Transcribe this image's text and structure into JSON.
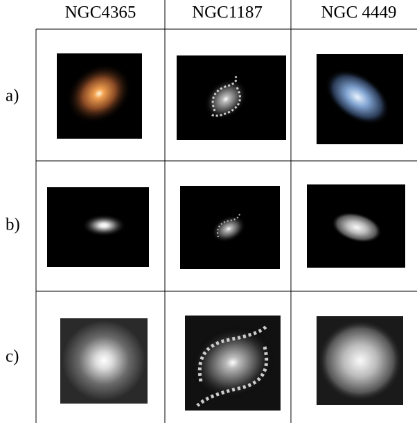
{
  "header": {
    "columns": [
      "NGC4365",
      "NGC1187",
      "NGC 4449"
    ]
  },
  "rows": [
    {
      "label": "a)"
    },
    {
      "label": "b)"
    },
    {
      "label": "c)"
    }
  ]
}
